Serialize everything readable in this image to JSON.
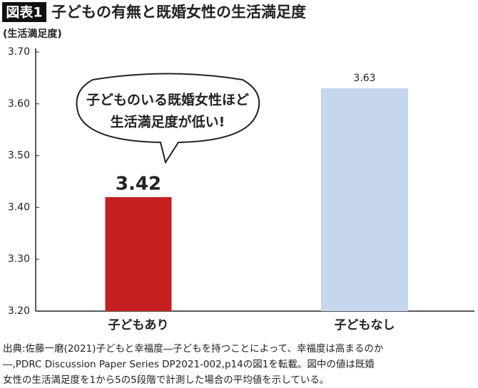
{
  "chart_data": {
    "type": "bar",
    "badge": "図表1",
    "title": "子どもの有無と既婚女性の生活満足度",
    "y_label": "(生活満足度)",
    "categories": [
      "子どもあり",
      "子どもなし"
    ],
    "values": [
      3.42,
      3.63
    ],
    "colors": [
      "#c4201f",
      "#c6d6ed"
    ],
    "ylim": [
      3.2,
      3.7
    ],
    "yticks": [
      {
        "value": 3.2,
        "label": "3.20"
      },
      {
        "value": 3.3,
        "label": "3.30"
      },
      {
        "value": 3.4,
        "label": "3.40"
      },
      {
        "value": 3.5,
        "label": "3.50"
      },
      {
        "value": 3.6,
        "label": "3.60"
      },
      {
        "value": 3.7,
        "label": "3.70"
      }
    ],
    "grid": false,
    "annotation": [
      "子どものいる既婚女性ほど",
      "生活満足度が低い!"
    ],
    "source": [
      "出典:佐藤一磨(2021)子どもと幸福度―子どもを持つことによって、幸福度は高まるのか",
      "―,PDRC Discussion Paper Series DP2021-002,p14の図1を転載。図中の値は既婚",
      "女性の生活満足度を1から5の5段階で計測した場合の平均値を示している。"
    ]
  }
}
